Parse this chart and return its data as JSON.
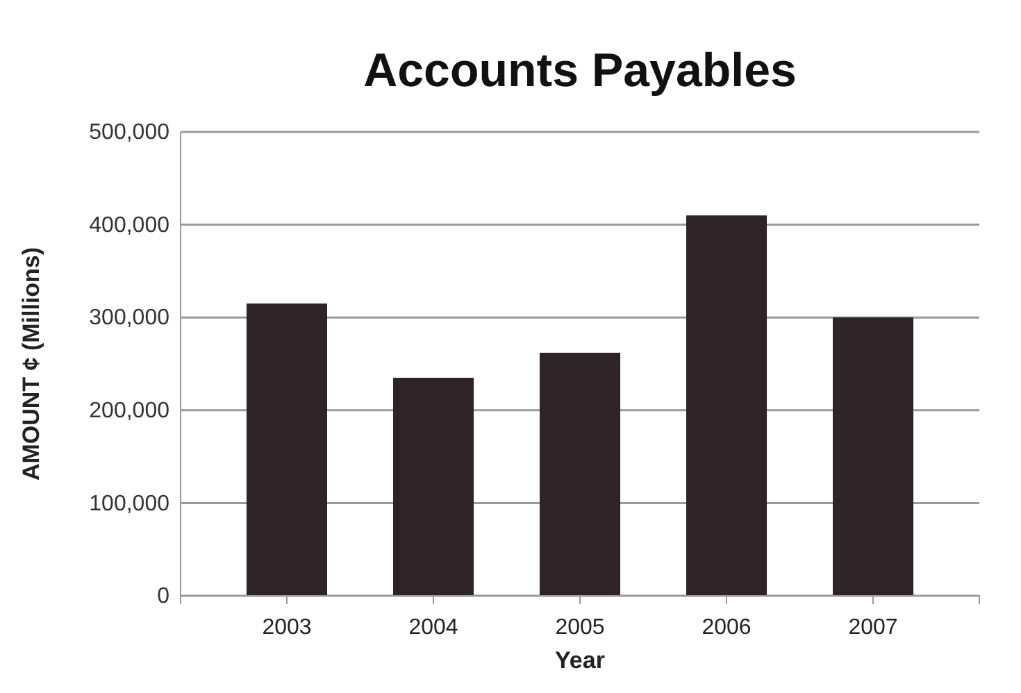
{
  "chart_data": {
    "type": "bar",
    "title": "Accounts Payables",
    "xlabel": "Year",
    "ylabel": "AMOUNT ¢ (Millions)",
    "categories": [
      "2003",
      "2004",
      "2005",
      "2006",
      "2007"
    ],
    "values": [
      315000,
      235000,
      262000,
      410000,
      300000
    ],
    "color": "#2e2427",
    "ylim": [
      0,
      500000
    ],
    "yticks": [
      {
        "value": 0,
        "label": "0"
      },
      {
        "value": 100000,
        "label": "100,000"
      },
      {
        "value": 200000,
        "label": "200,000"
      },
      {
        "value": 300000,
        "label": "300,000"
      },
      {
        "value": 400000,
        "label": "400,000"
      },
      {
        "value": 500000,
        "label": "500,000"
      }
    ],
    "grid": "y"
  }
}
